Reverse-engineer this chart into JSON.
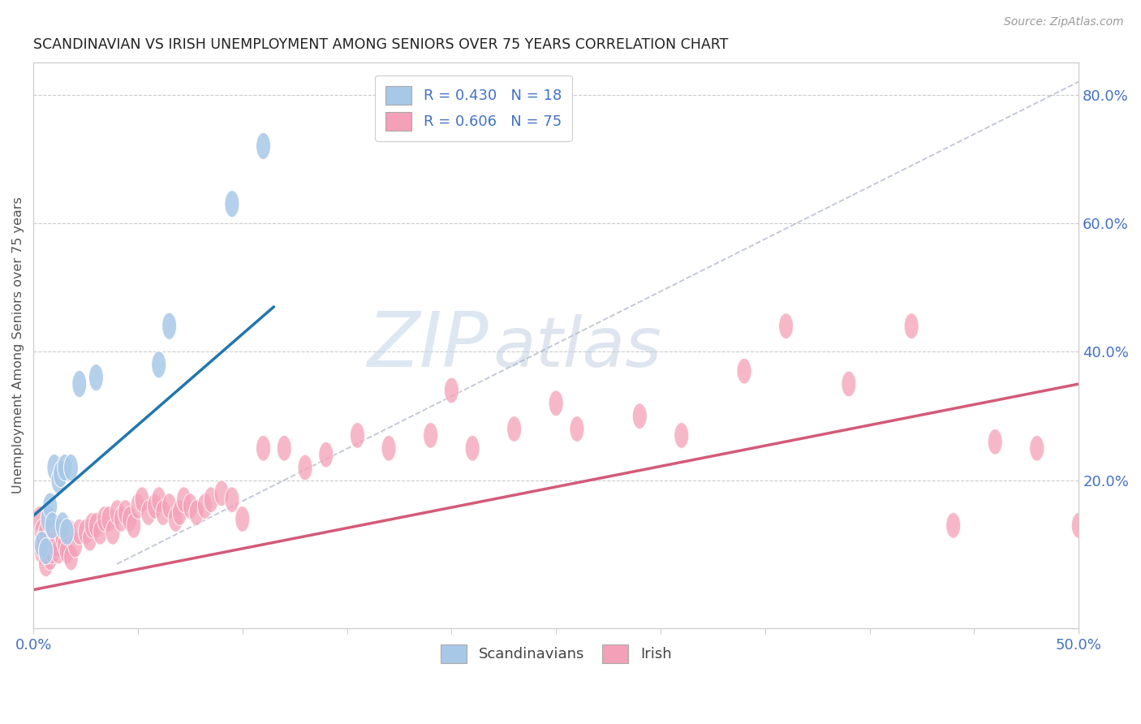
{
  "title": "SCANDINAVIAN VS IRISH UNEMPLOYMENT AMONG SENIORS OVER 75 YEARS CORRELATION CHART",
  "source": "Source: ZipAtlas.com",
  "ylabel": "Unemployment Among Seniors over 75 years",
  "xlim": [
    0.0,
    0.5
  ],
  "ylim": [
    -0.03,
    0.85
  ],
  "scandinavian_color": "#a8c8e8",
  "scandinavian_line_color": "#2176ae",
  "irish_color": "#f4a0b8",
  "irish_line_color": "#d45a78",
  "legend_R_scand": "R = 0.430",
  "legend_N_scand": "N = 18",
  "legend_R_irish": "R = 0.606",
  "legend_N_irish": "N = 75",
  "watermark_zip": "ZIP",
  "watermark_atlas": "atlas",
  "scand_x": [
    0.004,
    0.006,
    0.007,
    0.008,
    0.009,
    0.01,
    0.012,
    0.013,
    0.014,
    0.015,
    0.016,
    0.018,
    0.022,
    0.03,
    0.06,
    0.065,
    0.095,
    0.11
  ],
  "scand_y": [
    0.1,
    0.09,
    0.14,
    0.16,
    0.13,
    0.22,
    0.2,
    0.21,
    0.13,
    0.22,
    0.12,
    0.22,
    0.35,
    0.36,
    0.38,
    0.44,
    0.63,
    0.72
  ],
  "scand_line_x": [
    0.0,
    0.115
  ],
  "scand_line_y": [
    0.145,
    0.47
  ],
  "irish_line_x": [
    0.0,
    0.5
  ],
  "irish_line_y": [
    0.03,
    0.35
  ],
  "diag_line_x": [
    0.04,
    0.5
  ],
  "diag_line_y": [
    0.07,
    0.82
  ],
  "irish_x": [
    0.003,
    0.004,
    0.004,
    0.005,
    0.005,
    0.006,
    0.006,
    0.007,
    0.008,
    0.008,
    0.009,
    0.01,
    0.01,
    0.011,
    0.012,
    0.013,
    0.014,
    0.015,
    0.016,
    0.017,
    0.018,
    0.02,
    0.022,
    0.025,
    0.027,
    0.028,
    0.03,
    0.032,
    0.034,
    0.036,
    0.038,
    0.04,
    0.042,
    0.044,
    0.046,
    0.048,
    0.05,
    0.052,
    0.055,
    0.058,
    0.06,
    0.062,
    0.065,
    0.068,
    0.07,
    0.072,
    0.075,
    0.078,
    0.082,
    0.085,
    0.09,
    0.095,
    0.1,
    0.11,
    0.12,
    0.13,
    0.14,
    0.155,
    0.17,
    0.19,
    0.21,
    0.23,
    0.26,
    0.29,
    0.31,
    0.34,
    0.36,
    0.39,
    0.42,
    0.44,
    0.46,
    0.48,
    0.5,
    0.2,
    0.25
  ],
  "irish_y": [
    0.14,
    0.09,
    0.12,
    0.1,
    0.11,
    0.07,
    0.12,
    0.09,
    0.08,
    0.11,
    0.09,
    0.1,
    0.12,
    0.1,
    0.09,
    0.12,
    0.11,
    0.1,
    0.09,
    0.12,
    0.08,
    0.1,
    0.12,
    0.12,
    0.11,
    0.13,
    0.13,
    0.12,
    0.14,
    0.14,
    0.12,
    0.15,
    0.14,
    0.15,
    0.14,
    0.13,
    0.16,
    0.17,
    0.15,
    0.16,
    0.17,
    0.15,
    0.16,
    0.14,
    0.15,
    0.17,
    0.16,
    0.15,
    0.16,
    0.17,
    0.18,
    0.17,
    0.14,
    0.25,
    0.25,
    0.22,
    0.24,
    0.27,
    0.25,
    0.27,
    0.25,
    0.28,
    0.28,
    0.3,
    0.27,
    0.37,
    0.44,
    0.35,
    0.44,
    0.13,
    0.26,
    0.25,
    0.13,
    0.34,
    0.32
  ]
}
